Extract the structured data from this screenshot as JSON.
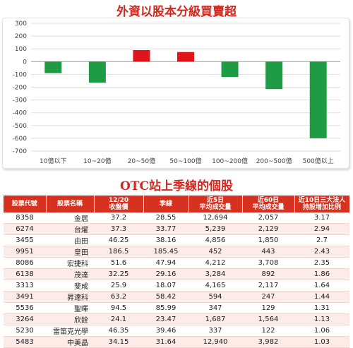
{
  "chart_title": "外資以股本分級買賣超",
  "table_title": "OTC站上季線的個股",
  "chart_data": {
    "type": "bar",
    "title": "外資以股本分級買賣超",
    "categories": [
      "10億以下",
      "10~20億",
      "20~50億",
      "50~100億",
      "100~200億",
      "200~500億",
      "500億以上"
    ],
    "values": [
      -90,
      -165,
      90,
      75,
      -120,
      -215,
      -600
    ],
    "colors": [
      "#1f9b45",
      "#1f9b45",
      "#e0151b",
      "#e0151b",
      "#1f9b45",
      "#1f9b45",
      "#1f9b45"
    ],
    "ylim": [
      -700,
      300
    ],
    "yticks": [
      300,
      200,
      100,
      0,
      -100,
      -200,
      -300,
      -400,
      -500,
      -600,
      -700
    ],
    "grid": true,
    "xlabel": "",
    "ylabel": ""
  },
  "table": {
    "headers": [
      [
        "股票代號"
      ],
      [
        "股票名稱"
      ],
      [
        "12/20",
        "收盤價"
      ],
      [
        "季線"
      ],
      [
        "近5日",
        "平均成交量"
      ],
      [
        "近60日",
        "平均成交量"
      ],
      [
        "近10日三大法人",
        "持股增加比例"
      ]
    ],
    "rows": [
      [
        "8358",
        "金居",
        "37.2",
        "28.55",
        "12,694",
        "2,057",
        "3.17"
      ],
      [
        "6274",
        "台燿",
        "37.3",
        "33.77",
        "5,239",
        "2,129",
        "2.94"
      ],
      [
        "3455",
        "由田",
        "46.25",
        "38.16",
        "4,856",
        "1,850",
        "2.7"
      ],
      [
        "9951",
        "皇田",
        "186.5",
        "185.45",
        "452",
        "443",
        "2.43"
      ],
      [
        "8086",
        "宏捷科",
        "51.6",
        "47.94",
        "4,212",
        "3,708",
        "2.35"
      ],
      [
        "6138",
        "茂達",
        "32.25",
        "29.16",
        "3,284",
        "892",
        "1.86"
      ],
      [
        "3313",
        "斐成",
        "25.9",
        "18.07",
        "4,165",
        "2,117",
        "1.64"
      ],
      [
        "3491",
        "昇達科",
        "63.2",
        "58.42",
        "594",
        "247",
        "1.44"
      ],
      [
        "5536",
        "聖暉",
        "94.5",
        "85.99",
        "347",
        "129",
        "1.31"
      ],
      [
        "3264",
        "欣銓",
        "24.1",
        "23.47",
        "1,687",
        "1,564",
        "1.13"
      ],
      [
        "5230",
        "雷笛克光學",
        "46.35",
        "39.46",
        "337",
        "122",
        "1.06"
      ],
      [
        "5483",
        "中美晶",
        "34.15",
        "31.64",
        "12,940",
        "3,982",
        "1.03"
      ]
    ]
  }
}
